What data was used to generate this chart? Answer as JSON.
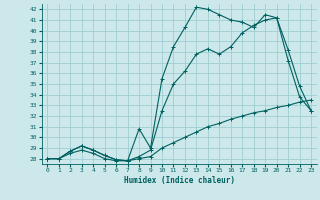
{
  "xlabel": "Humidex (Indice chaleur)",
  "background_color": "#cce8ea",
  "grid_color": "#9ecfd2",
  "line_color": "#006060",
  "xlim": [
    -0.5,
    23.5
  ],
  "ylim": [
    27.5,
    42.5
  ],
  "yticks": [
    28,
    29,
    30,
    31,
    32,
    33,
    34,
    35,
    36,
    37,
    38,
    39,
    40,
    41,
    42
  ],
  "xticks": [
    0,
    1,
    2,
    3,
    4,
    5,
    6,
    7,
    8,
    9,
    10,
    11,
    12,
    13,
    14,
    15,
    16,
    17,
    18,
    19,
    20,
    21,
    22,
    23
  ],
  "series1_x": [
    0,
    1,
    2,
    3,
    4,
    5,
    6,
    7,
    8,
    9,
    10,
    11,
    12,
    13,
    14,
    15,
    16,
    17,
    18,
    19,
    20,
    21,
    22,
    23
  ],
  "series1_y": [
    28.0,
    28.0,
    28.7,
    29.2,
    28.8,
    28.3,
    27.9,
    27.8,
    30.8,
    29.0,
    35.5,
    38.5,
    40.3,
    42.2,
    42.0,
    41.5,
    41.0,
    40.8,
    40.3,
    41.5,
    41.2,
    37.2,
    33.8,
    32.5
  ],
  "series2_x": [
    0,
    1,
    2,
    3,
    4,
    5,
    6,
    7,
    8,
    9,
    10,
    11,
    12,
    13,
    14,
    15,
    16,
    17,
    18,
    19,
    20,
    21,
    22,
    23
  ],
  "series2_y": [
    28.0,
    28.0,
    28.7,
    29.2,
    28.8,
    28.3,
    27.9,
    27.8,
    28.2,
    28.8,
    32.5,
    35.0,
    36.2,
    37.8,
    38.3,
    37.8,
    38.5,
    39.8,
    40.5,
    41.0,
    41.2,
    38.2,
    34.8,
    32.5
  ],
  "series3_x": [
    0,
    1,
    2,
    3,
    4,
    5,
    6,
    7,
    8,
    9,
    10,
    11,
    12,
    13,
    14,
    15,
    16,
    17,
    18,
    19,
    20,
    21,
    22,
    23
  ],
  "series3_y": [
    28.0,
    28.0,
    28.5,
    28.8,
    28.5,
    28.0,
    27.8,
    27.8,
    28.0,
    28.2,
    29.0,
    29.5,
    30.0,
    30.5,
    31.0,
    31.3,
    31.7,
    32.0,
    32.3,
    32.5,
    32.8,
    33.0,
    33.3,
    33.5
  ]
}
